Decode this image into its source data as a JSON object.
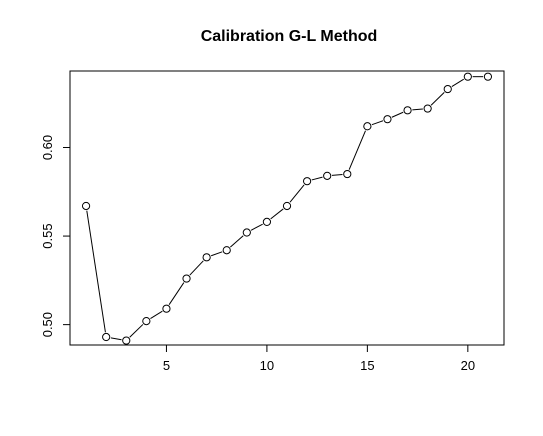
{
  "chart_data": {
    "type": "line",
    "title": "Calibration G-L Method",
    "xlabel": "",
    "ylabel": "",
    "xlim": [
      0.2,
      21.8
    ],
    "ylim": [
      0.4885,
      0.6432
    ],
    "x_ticks": [
      5,
      10,
      15,
      20
    ],
    "y_ticks": [
      0.5,
      0.55,
      0.6
    ],
    "x_tick_labels": [
      "5",
      "10",
      "15",
      "20"
    ],
    "y_tick_labels": [
      "0.50",
      "0.55",
      "0.60"
    ],
    "grid": false,
    "markers": "open-circle",
    "series": [
      {
        "x": [
          1,
          2,
          3,
          4,
          5,
          6,
          7,
          8,
          9,
          10,
          11,
          12,
          13,
          14,
          15,
          16,
          17,
          18,
          19,
          20,
          21
        ],
        "values": [
          0.567,
          0.493,
          0.491,
          0.502,
          0.509,
          0.526,
          0.538,
          0.542,
          0.552,
          0.558,
          0.567,
          0.581,
          0.584,
          0.585,
          0.612,
          0.616,
          0.621,
          0.622,
          0.633,
          0.64,
          0.64
        ]
      }
    ]
  }
}
